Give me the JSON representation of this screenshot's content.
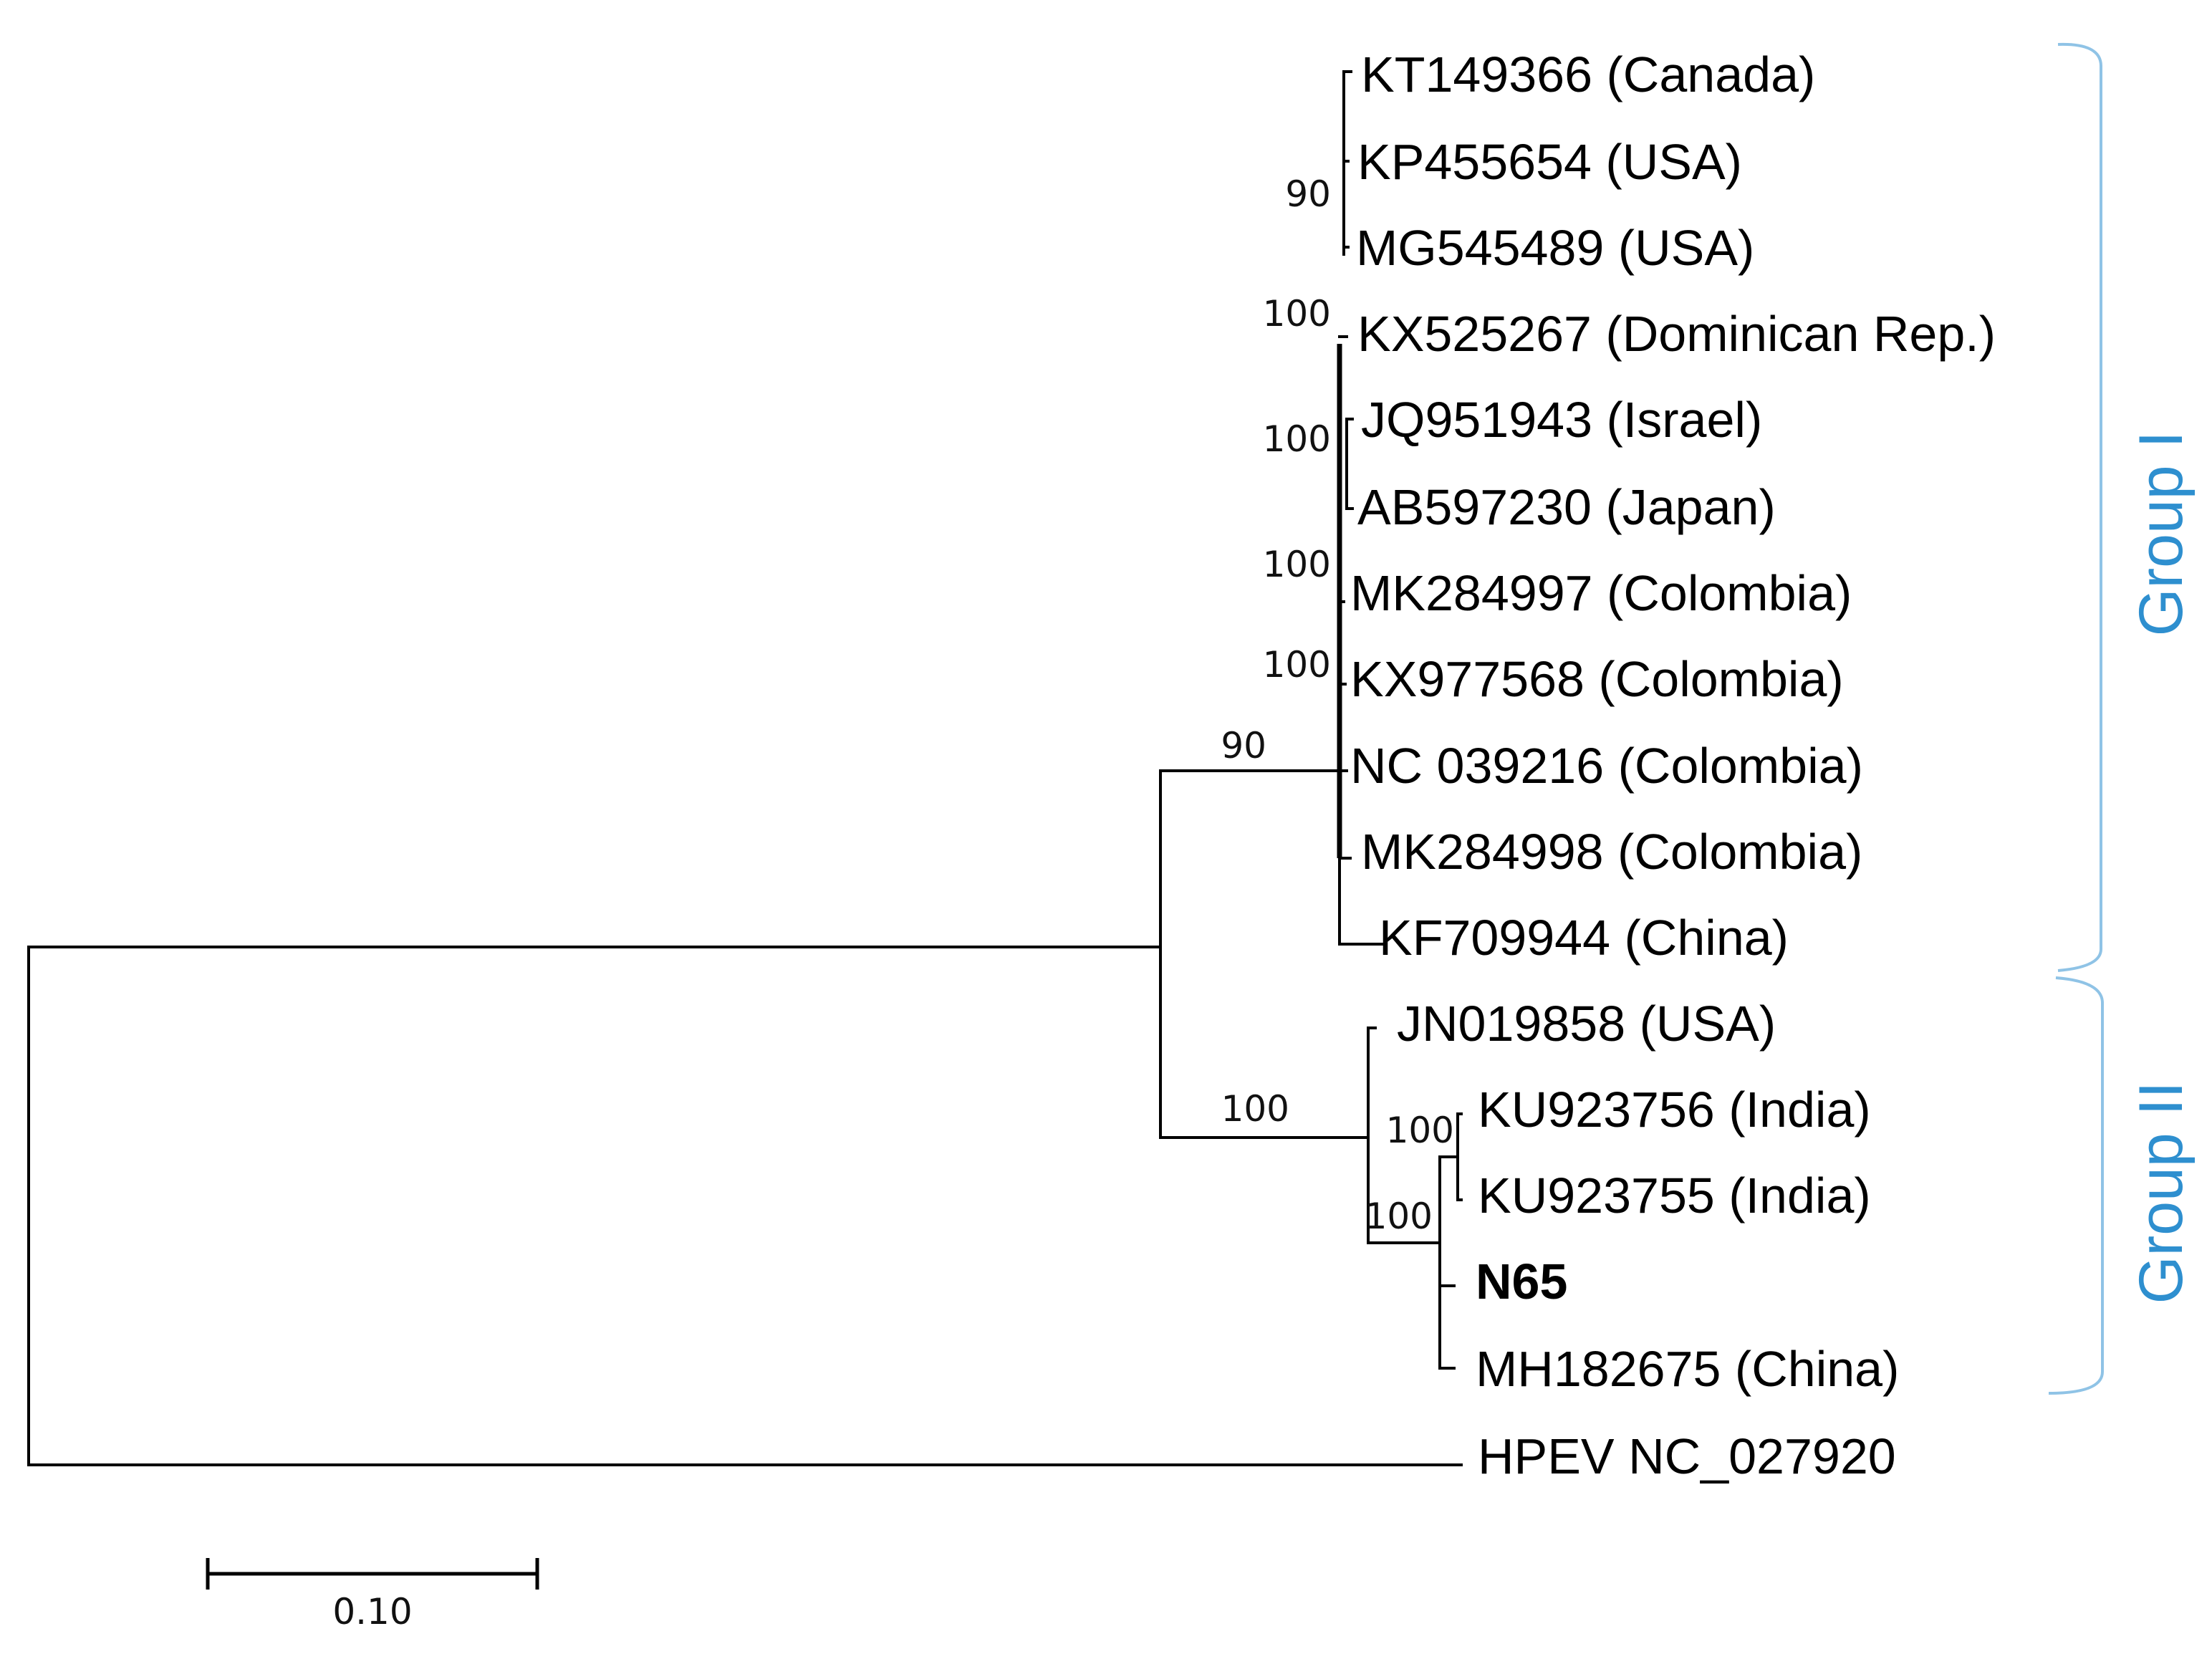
{
  "tree": {
    "taxa": [
      "KT149366 (Canada)",
      "KP455654 (USA)",
      "MG545489 (USA)",
      "KX525267 (Dominican Rep.)",
      "JQ951943 (Israel)",
      "AB597230 (Japan)",
      "MK284997 (Colombia)",
      "KX977568 (Colombia)",
      "NC 039216 (Colombia)",
      "MK284998 (Colombia)",
      "KF709944 (China)",
      "JN019858 (USA)",
      "KU923756 (India)",
      "KU923755 (India)",
      "N65",
      "MH182675 (China)",
      "HPEV NC_027920"
    ],
    "highlighted_taxon": "N65",
    "support_values": [
      "90",
      "100",
      "100",
      "100",
      "100",
      "90",
      "100",
      "100",
      "100"
    ],
    "groups": [
      {
        "name": "Group I",
        "color": "#2e8fcf"
      },
      {
        "name": "Group II",
        "color": "#2e8fcf"
      }
    ],
    "scale_bar": {
      "value": 0.1,
      "label": "0.10"
    }
  },
  "colors": {
    "branch": "#000000",
    "group_bracket": "#8fc3e6",
    "group_label": "#2e8fcf"
  }
}
